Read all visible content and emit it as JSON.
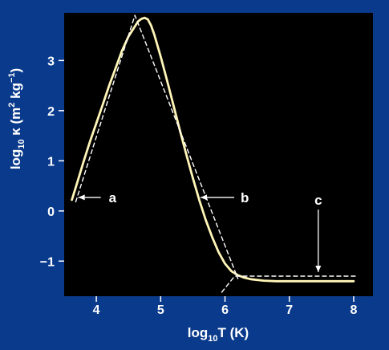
{
  "colors": {
    "background": "#0a3a8c",
    "plot_area": "#000000",
    "curve": "#fff6b8",
    "dashed": "#ffffff",
    "text": "#ffffff"
  },
  "chart_data": {
    "type": "line",
    "xlabel_main": "log",
    "xlabel_sub": "10",
    "xlabel_rest": "T (K)",
    "ylabel_main": "log",
    "ylabel_sub": "10",
    "ylabel_kappa": " κ (m",
    "ylabel_sup1": "2",
    "ylabel_kg": " kg",
    "ylabel_sup2": "−1",
    "ylabel_close": ")",
    "xlim": [
      3.5,
      8.3
    ],
    "ylim": [
      -1.7,
      3.95
    ],
    "xticks": [
      {
        "value": 4,
        "label": "4"
      },
      {
        "value": 5,
        "label": "5"
      },
      {
        "value": 6,
        "label": "6"
      },
      {
        "value": 7,
        "label": "7"
      },
      {
        "value": 8,
        "label": "8"
      }
    ],
    "yticks": [
      {
        "value": 3,
        "label": "3"
      },
      {
        "value": 2,
        "label": "2"
      },
      {
        "value": 1,
        "label": "1"
      },
      {
        "value": 0,
        "label": "0"
      },
      {
        "value": -1,
        "label": "−1"
      }
    ],
    "series": [
      {
        "style": "solid",
        "x": [
          3.62,
          3.7,
          3.8,
          3.9,
          4.0,
          4.1,
          4.2,
          4.3,
          4.4,
          4.5,
          4.6,
          4.65,
          4.7,
          4.75,
          4.8,
          4.85,
          4.9,
          5.0,
          5.1,
          5.2,
          5.3,
          5.4,
          5.5,
          5.6,
          5.7,
          5.8,
          5.9,
          6.0,
          6.1,
          6.2,
          6.3,
          6.4,
          6.6,
          6.8,
          7.0,
          7.5,
          8.0
        ],
        "y": [
          0.22,
          0.55,
          0.98,
          1.38,
          1.75,
          2.12,
          2.5,
          2.85,
          3.2,
          3.48,
          3.68,
          3.78,
          3.83,
          3.85,
          3.82,
          3.7,
          3.52,
          3.08,
          2.6,
          2.1,
          1.6,
          1.12,
          0.66,
          0.22,
          -0.18,
          -0.52,
          -0.82,
          -1.05,
          -1.2,
          -1.28,
          -1.33,
          -1.36,
          -1.39,
          -1.4,
          -1.4,
          -1.4,
          -1.4
        ]
      },
      {
        "style": "dashed",
        "x": [
          3.68,
          4.6,
          6.2
        ],
        "y": [
          0.18,
          3.9,
          -1.35
        ]
      },
      {
        "style": "dashed",
        "x": [
          5.95,
          6.15,
          8.05
        ],
        "y": [
          -1.62,
          -1.3,
          -1.3
        ]
      }
    ],
    "annotations": [
      {
        "label": "a",
        "arrow_to": [
          3.72,
          0.27
        ]
      },
      {
        "label": "b",
        "arrow_to": [
          5.62,
          0.27
        ]
      },
      {
        "label": "c",
        "arrow_to": [
          7.45,
          -1.22
        ]
      }
    ]
  }
}
